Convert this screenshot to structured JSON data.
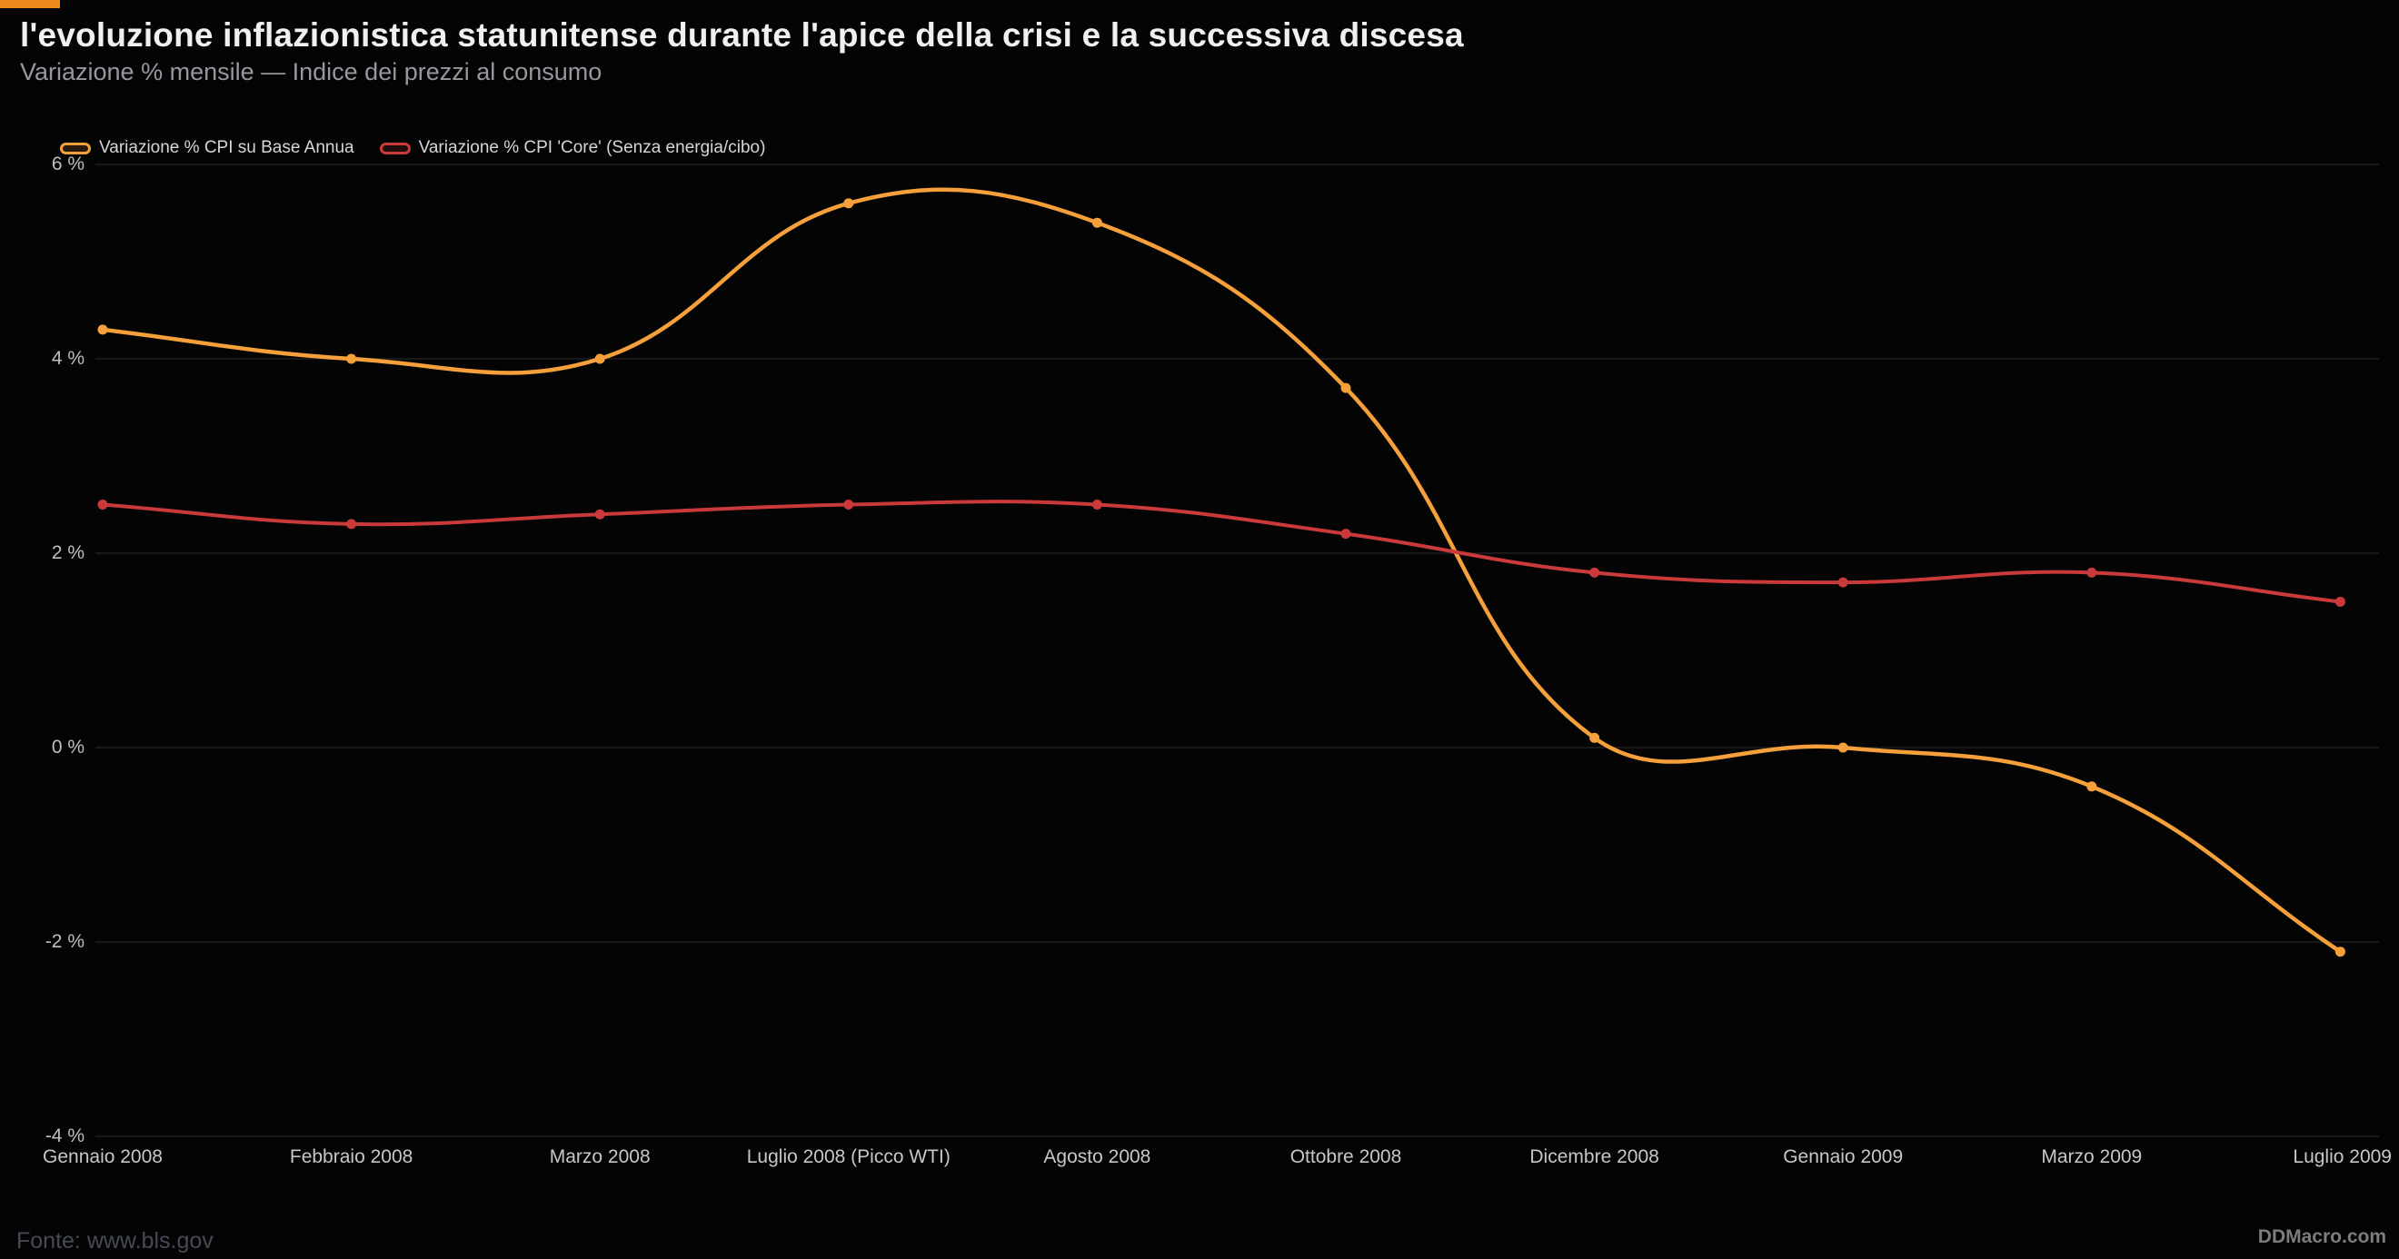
{
  "header": {
    "title": "l'evoluzione inflazionistica statunitense durante l'apice della crisi e la successiva discesa",
    "subtitle": "Variazione % mensile — Indice dei prezzi al consumo",
    "accent_color": "#ef8a1d"
  },
  "chart_data": {
    "type": "line",
    "title": "l'evoluzione inflazionistica statunitense durante l'apice della crisi e la successiva discesa",
    "subtitle": "Variazione % mensile — Indice dei prezzi al consumo",
    "categories": [
      "Gennaio 2008",
      "Febbraio 2008",
      "Marzo 2008",
      "Luglio 2008 (Picco WTI)",
      "Agosto 2008",
      "Ottobre 2008",
      "Dicembre 2008",
      "Gennaio 2009",
      "Marzo 2009",
      "Luglio 2009"
    ],
    "series": [
      {
        "name": "Variazione % CPI su Base Annua",
        "color": "#f5a03a",
        "values": [
          4.3,
          4.0,
          4.0,
          5.6,
          5.4,
          3.7,
          0.1,
          0.0,
          -0.4,
          -2.1
        ]
      },
      {
        "name": "Variazione % CPI 'Core' (Senza energia/cibo)",
        "color": "#cb3a3a",
        "values": [
          2.5,
          2.3,
          2.4,
          2.5,
          2.5,
          2.2,
          1.8,
          1.7,
          1.8,
          1.5
        ]
      }
    ],
    "ylim": [
      -4,
      6
    ],
    "yticks": [
      {
        "value": 6,
        "label": "6 %"
      },
      {
        "value": 4,
        "label": "4 %"
      },
      {
        "value": 2,
        "label": "2 %"
      },
      {
        "value": 0,
        "label": "0 %"
      },
      {
        "value": -2,
        "label": "-2 %"
      },
      {
        "value": -4,
        "label": "-4 %"
      }
    ],
    "grid": "horizontal",
    "grid_color": "#191919",
    "legend_position": "top-left",
    "curve": "smooth",
    "point_markers": true
  },
  "footer": {
    "source": "Fonte: www.bls.gov",
    "brand": "DDMacro.com"
  }
}
